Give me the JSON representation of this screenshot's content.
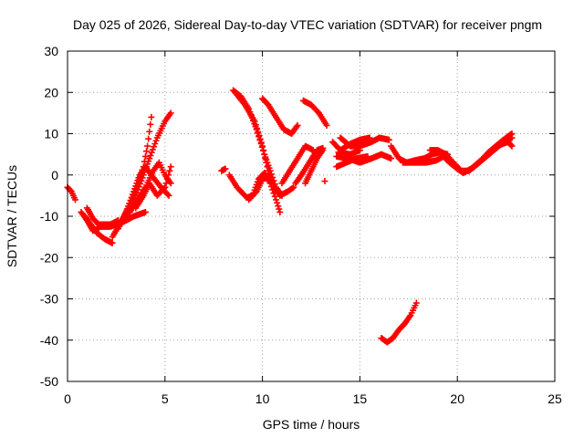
{
  "chart_data": {
    "type": "scatter",
    "title": "Day 025 of 2026, Sidereal Day-to-day VTEC variation (SDTVAR) for receiver pngm",
    "xlabel": "GPS time / hours",
    "ylabel": "SDTVAR / TECUs",
    "xlim": [
      0,
      25
    ],
    "ylim": [
      -50,
      30
    ],
    "xticks": [
      0,
      5,
      10,
      15,
      20,
      25
    ],
    "yticks": [
      -50,
      -40,
      -30,
      -20,
      -10,
      0,
      10,
      20,
      30
    ],
    "grid": true,
    "legend": "none",
    "marker": "plus",
    "color": "#ff0000",
    "tracks": [
      [
        [
          0.0,
          -3.0
        ],
        [
          0.2,
          -4.0
        ],
        [
          0.4,
          -6.0
        ]
      ],
      [
        [
          0.7,
          -9.0
        ],
        [
          1.0,
          -11.0
        ],
        [
          1.3,
          -13.5
        ],
        [
          1.6,
          -13.0
        ]
      ],
      [
        [
          0.9,
          -10.0
        ],
        [
          1.2,
          -12.0
        ],
        [
          1.5,
          -14.0
        ],
        [
          1.9,
          -15.5
        ],
        [
          2.3,
          -16.5
        ]
      ],
      [
        [
          1.0,
          -8.0
        ],
        [
          1.3,
          -10.5
        ],
        [
          1.7,
          -12.5
        ],
        [
          2.2,
          -12.5
        ],
        [
          2.8,
          -11.5
        ],
        [
          3.4,
          -10.0
        ],
        [
          4.0,
          -9.0
        ]
      ],
      [
        [
          1.6,
          -12.0
        ],
        [
          2.2,
          -12.0
        ],
        [
          2.6,
          -11.0
        ]
      ],
      [
        [
          2.3,
          -15.0
        ],
        [
          2.8,
          -11.0
        ],
        [
          3.2,
          -7.0
        ],
        [
          3.6,
          -2.0
        ],
        [
          3.9,
          2.0
        ],
        [
          4.1,
          7.0
        ],
        [
          4.3,
          14.0
        ]
      ],
      [
        [
          2.6,
          -13.0
        ],
        [
          3.0,
          -9.0
        ],
        [
          3.4,
          -4.0
        ],
        [
          3.7,
          0.0
        ],
        [
          4.0,
          2.0
        ],
        [
          4.3,
          0.0
        ],
        [
          4.8,
          -3.0
        ],
        [
          5.2,
          -5.0
        ]
      ],
      [
        [
          3.0,
          -11.0
        ],
        [
          3.5,
          -5.0
        ],
        [
          3.9,
          0.0
        ],
        [
          4.2,
          4.0
        ],
        [
          4.6,
          9.0
        ],
        [
          5.0,
          13.0
        ],
        [
          5.3,
          15.0
        ]
      ],
      [
        [
          3.2,
          -9.0
        ],
        [
          3.6,
          -6.0
        ],
        [
          4.0,
          -3.0
        ],
        [
          4.4,
          1.0
        ],
        [
          4.7,
          3.0
        ],
        [
          5.0,
          0.0
        ],
        [
          5.3,
          -2.0
        ]
      ],
      [
        [
          3.5,
          -8.0
        ],
        [
          3.9,
          -5.0
        ],
        [
          4.2,
          -2.0
        ],
        [
          4.6,
          -5.0
        ],
        [
          5.0,
          -3.0
        ],
        [
          5.3,
          2.0
        ]
      ],
      [
        [
          7.9,
          1.0
        ],
        [
          8.1,
          1.5
        ]
      ],
      [
        [
          8.3,
          0.0
        ],
        [
          8.7,
          -3.0
        ],
        [
          9.2,
          -5.5
        ],
        [
          9.5,
          -5.0
        ],
        [
          9.8,
          -1.0
        ],
        [
          10.1,
          0.5
        ],
        [
          10.4,
          -2.0
        ],
        [
          10.7,
          -6.0
        ],
        [
          10.9,
          -9.0
        ]
      ],
      [
        [
          8.5,
          20.5
        ],
        [
          8.9,
          19.0
        ],
        [
          9.3,
          16.0
        ],
        [
          9.7,
          11.0
        ],
        [
          10.1,
          5.0
        ],
        [
          10.4,
          1.0
        ],
        [
          10.7,
          -3.0
        ],
        [
          11.0,
          -5.0
        ]
      ],
      [
        [
          8.6,
          20.0
        ],
        [
          9.1,
          17.0
        ],
        [
          9.6,
          13.0
        ],
        [
          10.0,
          7.0
        ],
        [
          10.3,
          1.0
        ],
        [
          10.6,
          -3.0
        ],
        [
          10.9,
          -5.0
        ],
        [
          11.3,
          -4.0
        ],
        [
          11.6,
          -3.0
        ]
      ],
      [
        [
          9.3,
          -6.0
        ],
        [
          9.7,
          -4.0
        ],
        [
          10.0,
          -1.0
        ],
        [
          10.3,
          -0.5
        ]
      ],
      [
        [
          10.0,
          18.5
        ],
        [
          10.3,
          17.0
        ],
        [
          10.7,
          14.0
        ],
        [
          11.1,
          11.0
        ],
        [
          11.5,
          10.0
        ],
        [
          11.8,
          12.0
        ]
      ],
      [
        [
          11.0,
          -2.0
        ],
        [
          11.4,
          1.0
        ],
        [
          11.8,
          4.0
        ],
        [
          12.2,
          7.0
        ],
        [
          12.6,
          6.0
        ]
      ],
      [
        [
          11.7,
          -2.0
        ],
        [
          12.0,
          0.0
        ],
        [
          12.4,
          3.0
        ],
        [
          12.8,
          6.0
        ],
        [
          13.1,
          6.5
        ]
      ],
      [
        [
          12.2,
          -2.0
        ],
        [
          12.5,
          1.0
        ],
        [
          12.8,
          4.0
        ],
        [
          13.1,
          6.0
        ]
      ],
      [
        [
          12.1,
          18.0
        ],
        [
          12.5,
          17.0
        ],
        [
          12.9,
          15.0
        ],
        [
          13.3,
          12.0
        ]
      ],
      [
        [
          13.2,
          -1.5
        ]
      ],
      [
        [
          13.6,
          8.0
        ],
        [
          14.0,
          6.0
        ],
        [
          14.5,
          7.5
        ],
        [
          15.0,
          8.5
        ],
        [
          15.5,
          9.0
        ]
      ],
      [
        [
          14.0,
          9.0
        ],
        [
          14.5,
          7.0
        ],
        [
          15.0,
          7.0
        ],
        [
          15.6,
          8.0
        ],
        [
          16.0,
          9.0
        ],
        [
          16.5,
          8.5
        ]
      ],
      [
        [
          13.8,
          2.0
        ],
        [
          14.3,
          3.0
        ],
        [
          14.8,
          4.0
        ],
        [
          15.4,
          4.5
        ]
      ],
      [
        [
          13.8,
          4.5
        ],
        [
          14.4,
          4.0
        ],
        [
          15.0,
          3.0
        ],
        [
          15.6,
          4.0
        ],
        [
          16.1,
          5.0
        ],
        [
          16.6,
          4.0
        ]
      ],
      [
        [
          13.9,
          5.5
        ],
        [
          14.5,
          5.0
        ],
        [
          15.0,
          6.0
        ]
      ],
      [
        [
          16.6,
          7.0
        ],
        [
          17.0,
          4.0
        ],
        [
          17.4,
          3.0
        ],
        [
          17.8,
          3.5
        ],
        [
          18.3,
          4.0
        ],
        [
          18.7,
          5.0
        ],
        [
          19.1,
          5.5
        ],
        [
          19.5,
          5.0
        ]
      ],
      [
        [
          17.2,
          3.0
        ],
        [
          17.8,
          3.0
        ],
        [
          18.4,
          3.0
        ],
        [
          18.9,
          3.5
        ],
        [
          19.3,
          4.5
        ],
        [
          19.6,
          3.0
        ],
        [
          20.0,
          1.5
        ],
        [
          20.3,
          0.5
        ],
        [
          20.7,
          1.5
        ],
        [
          21.2,
          3.5
        ],
        [
          21.6,
          5.5
        ],
        [
          22.1,
          7.5
        ],
        [
          22.5,
          9.0
        ],
        [
          22.8,
          10.0
        ]
      ],
      [
        [
          18.6,
          6.0
        ],
        [
          19.0,
          6.0
        ],
        [
          19.4,
          5.0
        ],
        [
          19.8,
          3.0
        ],
        [
          20.2,
          1.0
        ],
        [
          20.6,
          1.0
        ],
        [
          21.0,
          2.5
        ],
        [
          21.5,
          4.5
        ],
        [
          22.0,
          6.5
        ],
        [
          22.4,
          8.0
        ],
        [
          22.8,
          9.0
        ]
      ],
      [
        [
          22.3,
          7.5
        ],
        [
          22.6,
          8.0
        ],
        [
          22.8,
          7.0
        ]
      ],
      [
        [
          16.1,
          -39.5
        ],
        [
          16.4,
          -40.5
        ],
        [
          16.7,
          -39.5
        ],
        [
          17.0,
          -37.5
        ],
        [
          17.3,
          -36.0
        ],
        [
          17.6,
          -34.0
        ],
        [
          17.9,
          -31.0
        ]
      ]
    ]
  }
}
